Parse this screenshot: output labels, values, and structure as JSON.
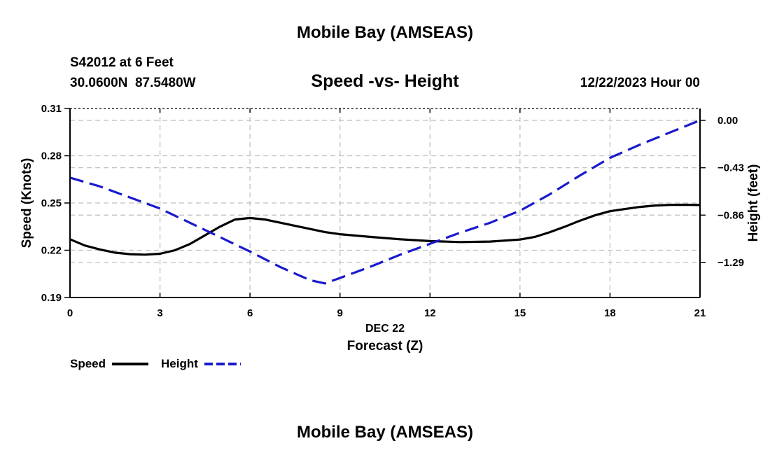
{
  "header": {
    "title": "Mobile Bay (AMSEAS)",
    "station": "S42012 at 6 Feet",
    "location": "30.0600N  87.5480W",
    "subtitle": "Speed -vs- Height",
    "datetime": "12/22/2023 Hour 00",
    "footer_title": "Mobile Bay (AMSEAS)"
  },
  "legend": {
    "speed_label": "Speed",
    "height_label": "Height"
  },
  "colors": {
    "speed": "#000000",
    "height": "#1a1acc",
    "grid": "#c0c0c0"
  },
  "chart_data": {
    "type": "line",
    "title": "Speed -vs- Height",
    "xlabel": "Forecast (Z)",
    "xlabel_date": "DEC 22",
    "ylabel": "Speed (Knots)",
    "y2label": "Height (feet)",
    "xlim": [
      0,
      21
    ],
    "ylim": [
      0.19,
      0.31
    ],
    "y2lim": [
      -1.6075,
      0.1075
    ],
    "x_ticks": [
      0,
      3,
      6,
      9,
      12,
      15,
      18,
      21
    ],
    "x_tick_labels": [
      "0",
      "3",
      "6",
      "9",
      "12",
      "15",
      "18",
      "21"
    ],
    "y_ticks": [
      0.19,
      0.22,
      0.25,
      0.28,
      0.31
    ],
    "y_tick_labels": [
      "0.19",
      "0.22",
      "0.25",
      "0.28",
      "0.31"
    ],
    "y2_ticks": [
      -1.29,
      -0.86,
      -0.43,
      0.0
    ],
    "y2_tick_labels": [
      "−1.29",
      "−0.86",
      "−0.43",
      "0.00"
    ],
    "grid": true,
    "legend_position": "bottom-left",
    "series": [
      {
        "name": "Speed",
        "axis": "left",
        "style": "solid",
        "x": [
          0,
          0.5,
          1,
          1.5,
          2,
          2.5,
          3,
          3.5,
          4,
          4.5,
          5,
          5.5,
          6,
          6.5,
          7,
          7.5,
          8,
          8.5,
          9,
          10,
          11,
          12,
          13,
          14,
          15,
          15.5,
          16,
          16.5,
          17,
          17.5,
          18,
          18.5,
          19,
          19.5,
          20,
          20.5,
          21
        ],
        "values": [
          0.227,
          0.223,
          0.2205,
          0.2185,
          0.2175,
          0.2172,
          0.2178,
          0.22,
          0.224,
          0.2295,
          0.235,
          0.2395,
          0.2405,
          0.2395,
          0.2375,
          0.2355,
          0.2335,
          0.2315,
          0.2302,
          0.2285,
          0.227,
          0.2258,
          0.2252,
          0.2255,
          0.2268,
          0.2285,
          0.2315,
          0.235,
          0.2388,
          0.2422,
          0.2448,
          0.2462,
          0.2475,
          0.2484,
          0.2488,
          0.2489,
          0.2487
        ]
      },
      {
        "name": "Height",
        "axis": "right",
        "style": "dashed",
        "x": [
          0,
          1,
          2,
          3,
          4,
          5,
          6,
          7,
          8,
          8.5,
          9,
          10,
          11,
          12,
          13,
          14,
          15,
          16,
          17,
          18,
          19,
          20,
          21
        ],
        "values": [
          -0.52,
          -0.6,
          -0.7,
          -0.8,
          -0.93,
          -1.06,
          -1.19,
          -1.33,
          -1.45,
          -1.48,
          -1.43,
          -1.33,
          -1.22,
          -1.12,
          -1.02,
          -0.93,
          -0.82,
          -0.67,
          -0.5,
          -0.34,
          -0.22,
          -0.11,
          0.0
        ]
      }
    ]
  }
}
